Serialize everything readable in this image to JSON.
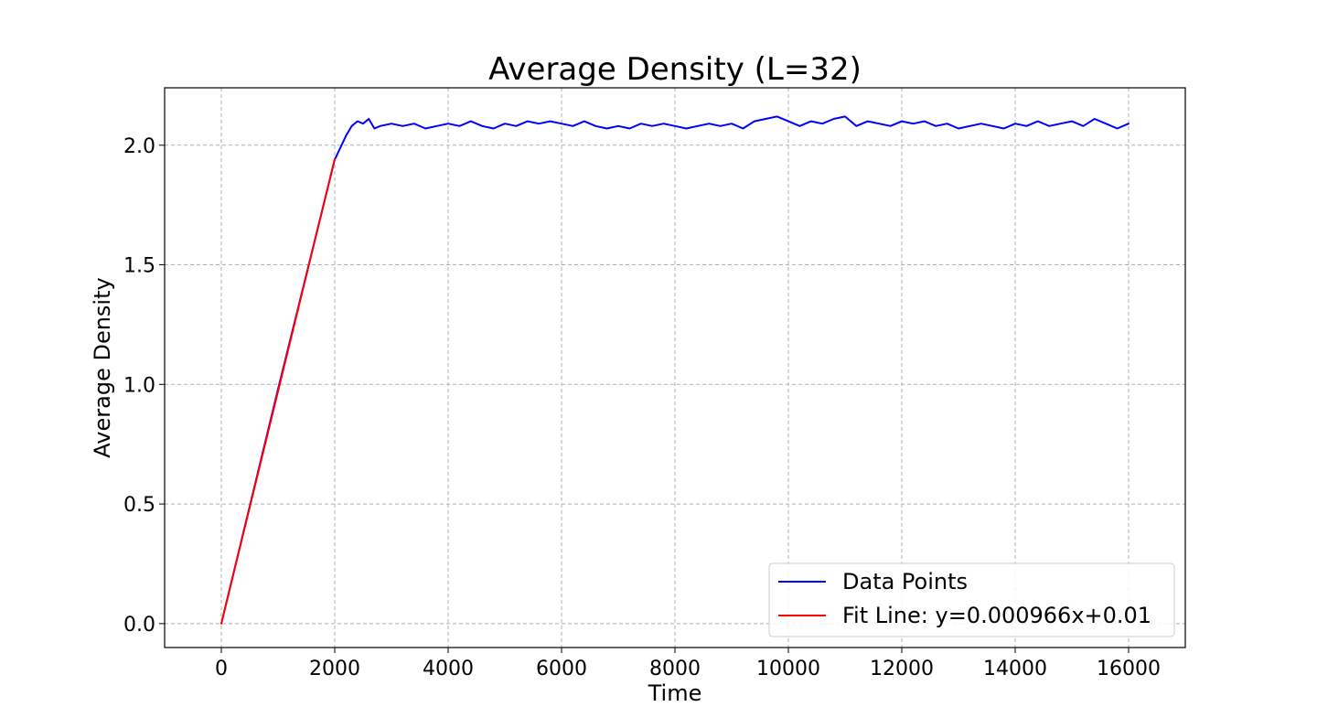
{
  "chart_data": {
    "type": "line",
    "title": "Average Density (L=32)",
    "xlabel": "Time",
    "ylabel": "Average Density",
    "xlim": [
      -1000,
      17000
    ],
    "ylim": [
      -0.1,
      2.24
    ],
    "xticks": [
      0,
      2000,
      4000,
      6000,
      8000,
      10000,
      12000,
      14000,
      16000
    ],
    "xtick_labels": [
      "0",
      "2000",
      "4000",
      "6000",
      "8000",
      "10000",
      "12000",
      "14000",
      "16000"
    ],
    "yticks": [
      0.0,
      0.5,
      1.0,
      1.5,
      2.0
    ],
    "ytick_labels": [
      "0.0",
      "0.5",
      "1.0",
      "1.5",
      "2.0"
    ],
    "grid": true,
    "legend_position": "lower-right",
    "series": [
      {
        "name": "Data Points",
        "color": "#0000ff",
        "x": [
          0,
          500,
          1000,
          1500,
          2000,
          2100,
          2200,
          2300,
          2400,
          2500,
          2600,
          2700,
          2800,
          3000,
          3200,
          3400,
          3600,
          3800,
          4000,
          4200,
          4400,
          4600,
          4800,
          5000,
          5200,
          5400,
          5600,
          5800,
          6000,
          6200,
          6400,
          6600,
          6800,
          7000,
          7200,
          7400,
          7600,
          7800,
          8000,
          8200,
          8400,
          8600,
          8800,
          9000,
          9200,
          9400,
          9600,
          9800,
          10000,
          10200,
          10400,
          10600,
          10800,
          11000,
          11200,
          11400,
          11600,
          11800,
          12000,
          12200,
          12400,
          12600,
          12800,
          13000,
          13200,
          13400,
          13600,
          13800,
          14000,
          14200,
          14400,
          14600,
          14800,
          15000,
          15200,
          15400,
          15600,
          15800,
          16000
        ],
        "y": [
          0.0,
          0.49,
          0.98,
          1.46,
          1.94,
          1.99,
          2.04,
          2.08,
          2.1,
          2.09,
          2.11,
          2.07,
          2.08,
          2.09,
          2.08,
          2.09,
          2.07,
          2.08,
          2.09,
          2.08,
          2.1,
          2.08,
          2.07,
          2.09,
          2.08,
          2.1,
          2.09,
          2.1,
          2.09,
          2.08,
          2.1,
          2.08,
          2.07,
          2.08,
          2.07,
          2.09,
          2.08,
          2.09,
          2.08,
          2.07,
          2.08,
          2.09,
          2.08,
          2.09,
          2.07,
          2.1,
          2.11,
          2.12,
          2.1,
          2.08,
          2.1,
          2.09,
          2.11,
          2.12,
          2.08,
          2.1,
          2.09,
          2.08,
          2.1,
          2.09,
          2.1,
          2.08,
          2.09,
          2.07,
          2.08,
          2.09,
          2.08,
          2.07,
          2.09,
          2.08,
          2.1,
          2.08,
          2.09,
          2.1,
          2.08,
          2.11,
          2.09,
          2.07,
          2.09
        ]
      },
      {
        "name": "Fit Line: y=0.000966x+0.01",
        "color": "#ff0000",
        "x": [
          0,
          2000
        ],
        "y": [
          0.0,
          1.942
        ]
      }
    ]
  }
}
